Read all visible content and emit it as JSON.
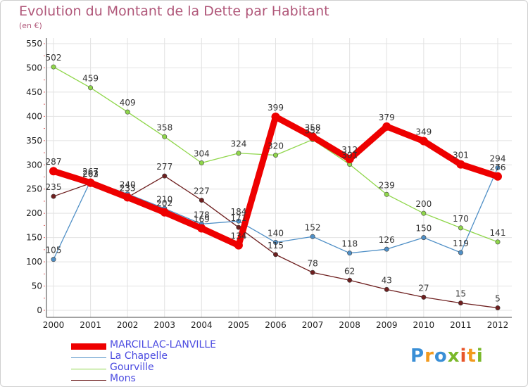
{
  "header": {
    "title": "Evolution du Montant de la Dette par Habitant",
    "subtitle": "(en €)"
  },
  "logo": {
    "text": "Proxiti",
    "colors": [
      "#3a8fd6",
      "#f29a1d",
      "#3a8fd6",
      "#7ab82a",
      "#e8552a",
      "#f29a1d",
      "#7ab82a"
    ]
  },
  "chart_data": {
    "type": "line",
    "categories": [
      "2000",
      "2001",
      "2002",
      "2003",
      "2004",
      "2005",
      "2006",
      "2007",
      "2008",
      "2009",
      "2010",
      "2011",
      "2012"
    ],
    "ylim": [
      0,
      550
    ],
    "yticks": [
      0,
      50,
      100,
      150,
      200,
      250,
      300,
      350,
      400,
      450,
      500,
      550
    ],
    "grid": true,
    "legend_position": "bottom-left",
    "series": [
      {
        "name": "MARCILLAC-LANVILLE",
        "color": "#ee0000",
        "values": [
          287,
          263,
          233,
          202,
          169,
          134,
          399,
          358,
          312,
          379,
          349,
          301,
          276
        ]
      },
      {
        "name": "La Chapelle",
        "color": "#4f8fc6",
        "values": [
          105,
          267,
          240,
          210,
          178,
          184,
          140,
          152,
          118,
          126,
          150,
          119,
          294
        ]
      },
      {
        "name": "Gourville",
        "color": "#8fd64a",
        "values": [
          502,
          459,
          409,
          358,
          304,
          324,
          320,
          352,
          301,
          239,
          200,
          170,
          141
        ]
      },
      {
        "name": "Mons",
        "color": "#6e1f1f",
        "values": [
          235,
          262,
          233,
          277,
          227,
          171,
          115,
          78,
          62,
          43,
          27,
          15,
          5
        ]
      }
    ]
  }
}
